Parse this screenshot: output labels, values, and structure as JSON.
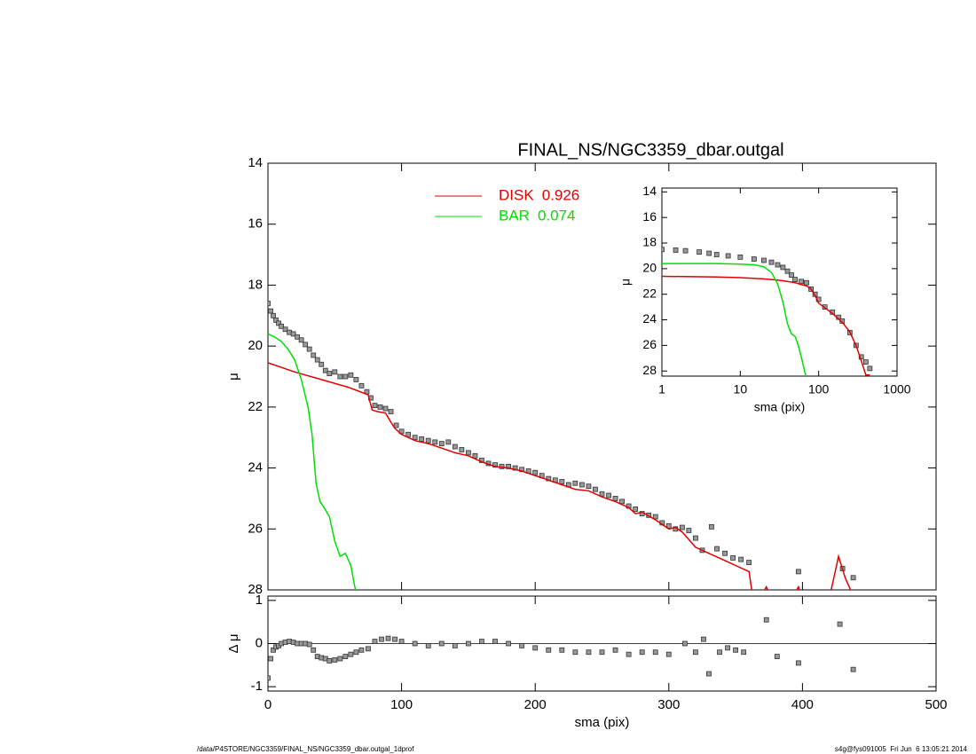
{
  "chart_data": [
    {
      "type": "line",
      "title": "FINAL_NS/NGC3359_dbar.outgal",
      "ylabel": "μ",
      "xlim": [
        0,
        500
      ],
      "xticks": [
        0,
        100,
        200,
        300,
        400,
        500
      ],
      "xtick_labels": false,
      "ylim": [
        14,
        28
      ],
      "y_inverted": true,
      "yticks": [
        14,
        16,
        18,
        20,
        22,
        24,
        26,
        28
      ],
      "series": [
        {
          "style": "markers",
          "color": "#999999",
          "x": [
            0,
            2,
            4,
            6,
            8,
            10,
            13,
            16,
            19,
            22,
            25,
            28,
            31,
            34,
            37,
            40,
            43,
            46,
            50,
            54,
            58,
            62,
            66,
            70,
            74,
            77,
            80,
            84,
            88,
            92,
            96,
            100,
            105,
            110,
            115,
            120,
            125,
            130,
            135,
            140,
            145,
            150,
            155,
            160,
            165,
            170,
            175,
            180,
            185,
            190,
            195,
            200,
            205,
            210,
            215,
            220,
            225,
            230,
            235,
            240,
            245,
            250,
            255,
            260,
            265,
            270,
            275,
            280,
            285,
            290,
            295,
            300,
            305,
            310,
            315,
            320,
            325,
            332,
            336,
            342,
            348,
            354,
            360,
            397,
            430,
            438
          ],
          "values": [
            18.6,
            18.85,
            19.0,
            19.15,
            19.25,
            19.35,
            19.45,
            19.55,
            19.6,
            19.7,
            19.8,
            19.95,
            20.1,
            20.3,
            20.45,
            20.6,
            20.8,
            20.9,
            20.85,
            21.0,
            21.0,
            20.95,
            21.1,
            21.3,
            21.5,
            21.7,
            21.95,
            22.0,
            22.05,
            22.15,
            22.6,
            22.8,
            22.9,
            23.0,
            23.05,
            23.1,
            23.15,
            23.2,
            23.15,
            23.3,
            23.4,
            23.5,
            23.6,
            23.75,
            23.85,
            23.9,
            23.95,
            23.95,
            24.0,
            24.05,
            24.1,
            24.15,
            24.25,
            24.35,
            24.4,
            24.45,
            24.55,
            24.5,
            24.55,
            24.6,
            24.7,
            24.85,
            24.9,
            25.0,
            25.1,
            25.25,
            25.35,
            25.5,
            25.55,
            25.6,
            25.8,
            25.9,
            26.0,
            25.95,
            26.05,
            26.3,
            26.7,
            25.93,
            26.65,
            26.8,
            26.95,
            27.0,
            27.1,
            27.4,
            27.3,
            27.6
          ]
        },
        {
          "style": "line",
          "name": "DISK",
          "fraction": 0.926,
          "color": "#e00000",
          "x": [
            0,
            20,
            40,
            60,
            75,
            78,
            82,
            88,
            92,
            95,
            100,
            110,
            120,
            130,
            140,
            150,
            160,
            170,
            180,
            190,
            200,
            210,
            220,
            230,
            240,
            250,
            260,
            270,
            275,
            280,
            290,
            300,
            305,
            310,
            320,
            330,
            340,
            350,
            360,
            363,
            368,
            373,
            377,
            380,
            390,
            393,
            397,
            400,
            420,
            427,
            432,
            437,
            440
          ],
          "values": [
            20.55,
            20.85,
            21.1,
            21.35,
            21.6,
            22.1,
            22.15,
            22.2,
            22.5,
            22.7,
            22.9,
            23.1,
            23.2,
            23.35,
            23.5,
            23.6,
            23.8,
            23.95,
            24.0,
            24.1,
            24.25,
            24.4,
            24.55,
            24.7,
            24.75,
            24.95,
            25.1,
            25.3,
            25.5,
            25.45,
            25.7,
            26.0,
            25.95,
            26.1,
            26.6,
            26.8,
            27.0,
            27.2,
            27.4,
            28.3,
            28.3,
            27.9,
            28.3,
            28.3,
            28.2,
            28.2,
            27.9,
            28.3,
            28.3,
            26.9,
            27.6,
            28.1,
            28.5
          ]
        },
        {
          "style": "line",
          "name": "BAR",
          "fraction": 0.074,
          "color": "#00e000",
          "x": [
            0,
            5,
            10,
            15,
            20,
            25,
            30,
            33,
            36,
            39,
            42,
            46,
            50,
            54,
            58,
            62,
            65,
            68
          ],
          "values": [
            19.6,
            19.7,
            19.85,
            20.1,
            20.45,
            21.1,
            22.0,
            22.9,
            24.5,
            25.1,
            25.3,
            25.6,
            26.4,
            26.9,
            26.8,
            27.2,
            27.9,
            28.5
          ]
        }
      ]
    },
    {
      "type": "scatter",
      "xlabel": "sma (pix)",
      "ylabel": "Δ μ",
      "zero_line": true,
      "xlim": [
        0,
        500
      ],
      "xticks": [
        0,
        100,
        200,
        300,
        400,
        500
      ],
      "ylim": [
        -1.1,
        1.1
      ],
      "yticks": [
        -1,
        0,
        1
      ],
      "series": [
        {
          "style": "markers",
          "color": "#999999",
          "x": [
            0,
            2,
            4,
            6,
            8,
            10,
            13,
            16,
            19,
            22,
            25,
            28,
            31,
            34,
            37,
            40,
            43,
            46,
            50,
            54,
            58,
            62,
            66,
            70,
            75,
            80,
            85,
            90,
            95,
            100,
            110,
            120,
            130,
            140,
            150,
            160,
            170,
            180,
            190,
            200,
            210,
            220,
            230,
            240,
            250,
            260,
            270,
            280,
            290,
            300,
            312,
            320,
            326,
            330,
            338,
            344,
            350,
            356,
            373,
            381,
            397,
            428,
            438
          ],
          "values": [
            -0.8,
            -0.35,
            -0.15,
            -0.08,
            -0.05,
            0.0,
            0.03,
            0.05,
            0.03,
            0.0,
            0.0,
            0.0,
            -0.02,
            -0.15,
            -0.3,
            -0.33,
            -0.35,
            -0.4,
            -0.38,
            -0.35,
            -0.3,
            -0.25,
            -0.2,
            -0.15,
            -0.12,
            0.05,
            0.1,
            0.12,
            0.1,
            0.05,
            0.0,
            -0.05,
            0.0,
            -0.05,
            0.0,
            0.05,
            0.05,
            0.0,
            -0.05,
            -0.1,
            -0.15,
            -0.15,
            -0.2,
            -0.2,
            -0.2,
            -0.15,
            -0.25,
            -0.2,
            -0.2,
            -0.25,
            0.0,
            -0.2,
            0.1,
            -0.7,
            -0.2,
            -0.1,
            -0.15,
            -0.2,
            0.55,
            -0.3,
            -0.45,
            0.45,
            -0.6
          ]
        }
      ]
    },
    {
      "type": "line",
      "xlabel": "sma (pix)",
      "ylabel": "μ",
      "xlog": true,
      "xlim": [
        1,
        1000
      ],
      "xticks": [
        1,
        10,
        100,
        1000
      ],
      "ylim": [
        13.7,
        28.4
      ],
      "y_inverted": true,
      "yticks": [
        14,
        16,
        18,
        20,
        22,
        24,
        26,
        28
      ],
      "series": [
        {
          "style": "markers",
          "color": "#999999",
          "x": [
            1,
            1.5,
            2,
            3,
            4,
            5,
            7,
            10,
            15,
            20,
            25,
            30,
            35,
            40,
            45,
            50,
            60,
            70,
            80,
            90,
            100,
            120,
            150,
            180,
            200,
            250,
            300,
            350,
            400,
            450
          ],
          "values": [
            18.5,
            18.55,
            18.6,
            18.7,
            18.8,
            18.9,
            19.0,
            19.1,
            19.25,
            19.35,
            19.5,
            19.7,
            19.9,
            20.2,
            20.5,
            20.85,
            21.0,
            21.1,
            21.6,
            22.0,
            22.4,
            23.0,
            23.4,
            23.8,
            24.1,
            25.0,
            26.0,
            26.9,
            27.3,
            27.8
          ]
        },
        {
          "style": "line",
          "color": "#e00000",
          "x": [
            1,
            5,
            10,
            20,
            30,
            40,
            50,
            60,
            70,
            80,
            90,
            100,
            150,
            200,
            250,
            300,
            350,
            400,
            450
          ],
          "values": [
            20.6,
            20.65,
            20.7,
            20.8,
            20.9,
            21.0,
            21.1,
            21.25,
            21.35,
            21.6,
            22.1,
            22.7,
            23.5,
            24.2,
            24.95,
            26.0,
            27.2,
            28.3,
            28.3
          ]
        },
        {
          "style": "line",
          "color": "#00e000",
          "x": [
            1,
            5,
            10,
            15,
            20,
            25,
            30,
            35,
            40,
            45,
            50,
            55,
            60,
            65,
            70
          ],
          "values": [
            19.6,
            19.6,
            19.65,
            19.7,
            19.85,
            20.3,
            21.2,
            22.6,
            24.3,
            25.1,
            25.3,
            26.0,
            26.9,
            27.8,
            28.6
          ]
        }
      ]
    }
  ],
  "footer_left": "/data/P4STORE/NGC3359/FINAL_NS/NGC3359_dbar.outgal_1dprof",
  "footer_right": "s4g@fys091005  Fri Jun  6 13:05:21 2014"
}
